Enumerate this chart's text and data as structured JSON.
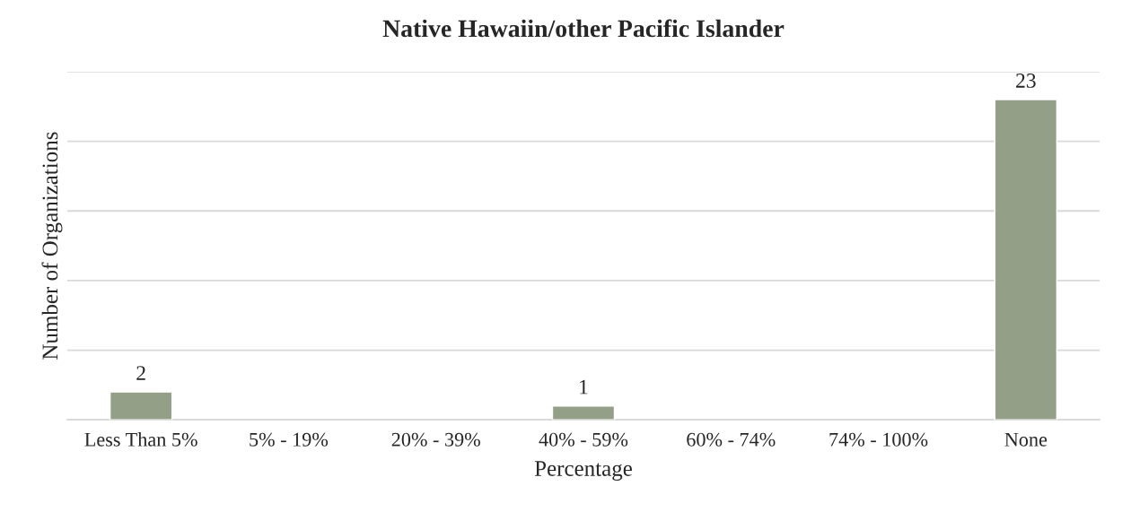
{
  "chart_data": {
    "type": "bar",
    "title": "Native Hawaiin/other Pacific Islander",
    "xlabel": "Percentage",
    "ylabel": "Number of Organizations",
    "categories": [
      "Less Than 5%",
      "5% - 19%",
      "20% - 39%",
      "40% - 59%",
      "60% - 74%",
      "74% - 100%",
      "None"
    ],
    "values": [
      2,
      null,
      null,
      1,
      null,
      null,
      23
    ],
    "value_labels": [
      "2",
      null,
      null,
      "1",
      null,
      null,
      "23"
    ],
    "color": "#939f86",
    "ylim": [
      0,
      25
    ],
    "yticks": [
      {
        "value": 0,
        "label": null
      },
      {
        "value": 5,
        "label": null
      },
      {
        "value": 10,
        "label": null
      },
      {
        "value": 15,
        "label": null
      },
      {
        "value": 20,
        "label": null
      },
      {
        "value": 25,
        "label": null
      }
    ],
    "grid": "y",
    "tick_labels": "x",
    "legend": false
  }
}
